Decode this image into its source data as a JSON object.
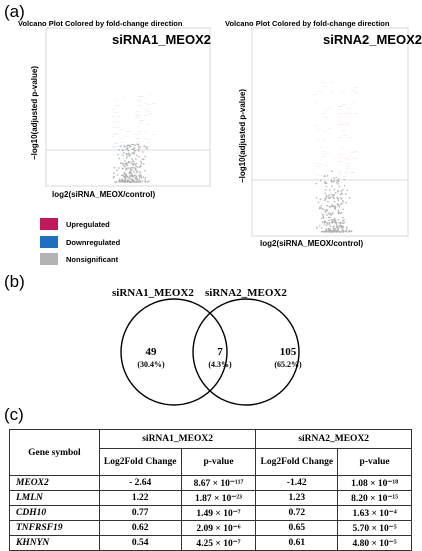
{
  "panels": {
    "a": "(a)",
    "b": "(b)",
    "c": "(c)"
  },
  "volcano1": {
    "title": "Volcano Plot Colored by fold-change direction",
    "name": "siRNA1_MEOX2",
    "ylabel": "−log10(adjusted p-value)",
    "xlabel": "log2(siRNA_MEOX/control)"
  },
  "volcano2": {
    "title": "Volcano Plot Colored by fold-change direction",
    "name": "siRNA2_MEOX2",
    "ylabel": "−log10(adjusted p-value)",
    "xlabel": "log2(siRNA_MEOX/control)"
  },
  "legend": [
    {
      "label": "Upregulated",
      "color": "#c2185b"
    },
    {
      "label": "Downregulated",
      "color": "#1f6fc5"
    },
    {
      "label": "Nonsignificant",
      "color": "#b3b3b3"
    }
  ],
  "venn": {
    "left_title": "siRNA1_MEOX2",
    "right_title": "siRNA2_MEOX2",
    "left_only": "49",
    "left_pct": "(30.4%)",
    "overlap": "7",
    "overlap_pct": "(4.3%)",
    "right_only": "105",
    "right_pct": "(65.2%)"
  },
  "table": {
    "gene_header": "Gene symbol",
    "group1": "siRNA1_MEOX2",
    "group2": "siRNA2_MEOX2",
    "col_fc": "Log2Fold Change",
    "col_p": "p-value",
    "rows": [
      {
        "gene": "MEOX2",
        "fc1": "- 2.64",
        "p1": "8.67 × 10⁻¹¹⁷",
        "fc2": "-1.42",
        "p2": "1.08 × 10⁻¹⁸"
      },
      {
        "gene": "LMLN",
        "fc1": "1.22",
        "p1": "1.87 × 10⁻²³",
        "fc2": "1.23",
        "p2": "8.20 × 10⁻¹⁵"
      },
      {
        "gene": "CDH10",
        "fc1": "0.77",
        "p1": "1.49 × 10⁻⁷",
        "fc2": "0.72",
        "p2": "1.63 × 10⁻⁴"
      },
      {
        "gene": "TNFRSF19",
        "fc1": "0.62",
        "p1": "2.09 × 10⁻⁶",
        "fc2": "0.65",
        "p2": "5.70 × 10⁻⁵"
      },
      {
        "gene": "KHNYN",
        "fc1": "0.54",
        "p1": "4.25 × 10⁻⁷",
        "fc2": "0.61",
        "p2": "4.80 × 10⁻⁵"
      }
    ]
  }
}
